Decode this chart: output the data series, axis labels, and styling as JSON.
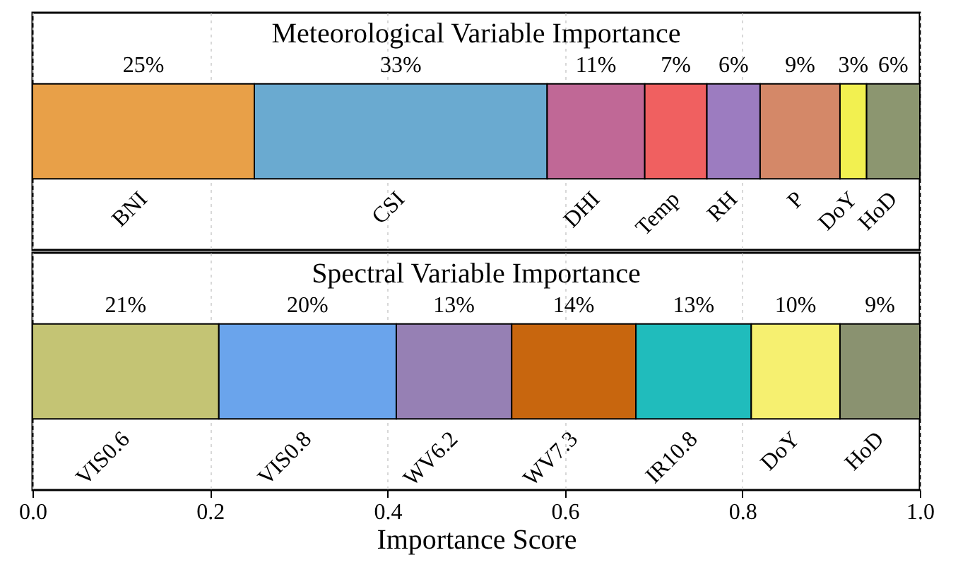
{
  "chart_data": [
    {
      "type": "bar",
      "title": "Meteorological Variable Importance",
      "orientation": "horizontal",
      "stacked": true,
      "categories": [
        null
      ],
      "xlim": [
        0,
        1
      ],
      "xticks": [
        0,
        0.2,
        0.4,
        0.6,
        0.8,
        1
      ],
      "tick_labels": false,
      "grid": "x",
      "legend": false,
      "series": [
        {
          "name": "BNI",
          "color": "#e8a048",
          "values": [
            0.25
          ],
          "value_labels": [
            "25%"
          ]
        },
        {
          "name": "CSI",
          "color": "#6aaad0",
          "values": [
            0.33
          ],
          "value_labels": [
            "33%"
          ]
        },
        {
          "name": "DHI",
          "color": "#c06896",
          "values": [
            0.11
          ],
          "value_labels": [
            "11%"
          ]
        },
        {
          "name": "Temp",
          "color": "#f06060",
          "values": [
            0.07
          ],
          "value_labels": [
            "7%"
          ]
        },
        {
          "name": "RH",
          "color": "#9c7cc0",
          "values": [
            0.06
          ],
          "value_labels": [
            "6%"
          ]
        },
        {
          "name": "P",
          "color": "#d48868",
          "values": [
            0.09
          ],
          "value_labels": [
            "9%"
          ]
        },
        {
          "name": "DoY",
          "color": "#f2f050",
          "values": [
            0.03
          ],
          "value_labels": [
            "3%"
          ]
        },
        {
          "name": "HoD",
          "color": "#8c9670",
          "values": [
            0.06
          ],
          "value_labels": [
            "6%"
          ]
        }
      ]
    },
    {
      "type": "bar",
      "title": "Spectral Variable Importance",
      "orientation": "horizontal",
      "stacked": true,
      "categories": [
        null
      ],
      "xlim": [
        0,
        1
      ],
      "xticks": [
        {
          "value": 0,
          "label": "0.0"
        },
        0.2,
        0.4,
        0.6,
        0.8,
        {
          "value": 1,
          "label": "1.0"
        }
      ],
      "xlabel": "Importance Score",
      "grid": "x",
      "legend": false,
      "series": [
        {
          "name": "VIS0.6",
          "color": "#c4c474",
          "values": [
            0.21
          ],
          "value_labels": [
            "21%"
          ]
        },
        {
          "name": "VIS0.8",
          "color": "#6aa4ec",
          "values": [
            0.2
          ],
          "value_labels": [
            "20%"
          ]
        },
        {
          "name": "WV6.2",
          "color": "#9680b4",
          "values": [
            0.13
          ],
          "value_labels": [
            "13%"
          ]
        },
        {
          "name": "WV7.3",
          "color": "#c8660e",
          "values": [
            0.14
          ],
          "value_labels": [
            "14%"
          ]
        },
        {
          "name": "IR10.8",
          "color": "#20bcbc",
          "values": [
            0.13
          ],
          "value_labels": [
            "13%"
          ]
        },
        {
          "name": "DoY",
          "color": "#f6f070",
          "values": [
            0.1
          ],
          "value_labels": [
            "10%"
          ]
        },
        {
          "name": "HoD",
          "color": "#8a9270",
          "values": [
            0.09
          ],
          "value_labels": [
            "9%"
          ]
        }
      ]
    }
  ]
}
